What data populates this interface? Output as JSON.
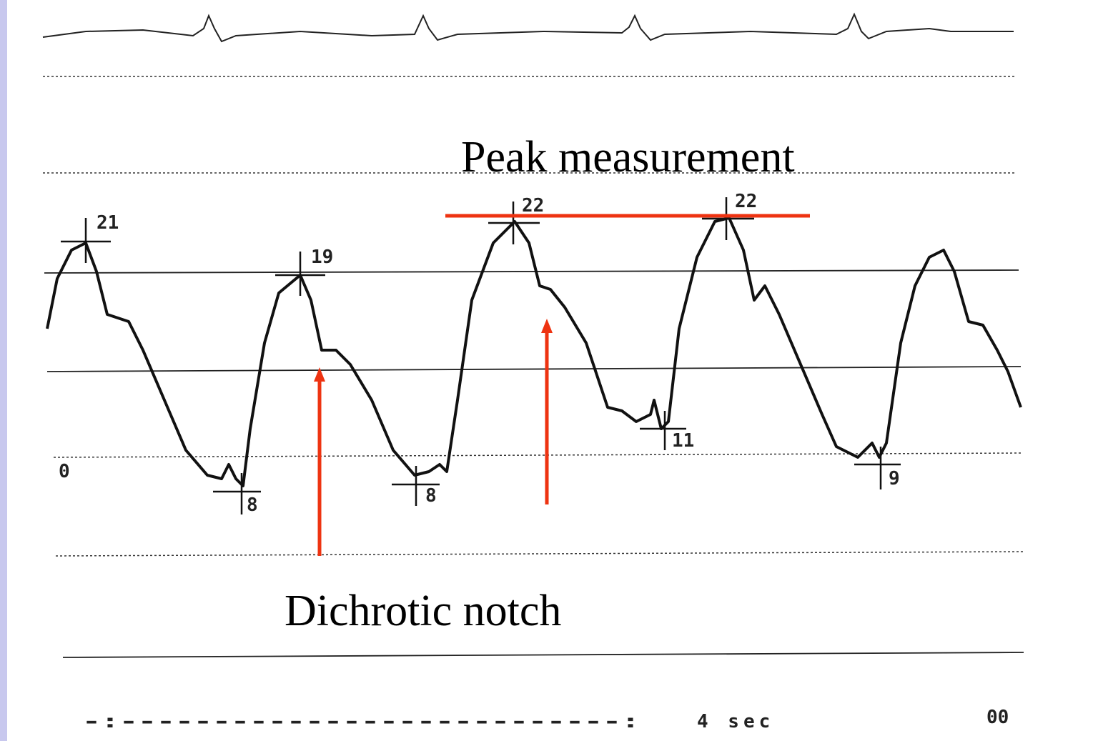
{
  "annotations": {
    "peak": "Peak measurement",
    "notch": "Dichrotic notch"
  },
  "readings": {
    "peaks": [
      "21",
      "19",
      "22",
      "22"
    ],
    "troughs": [
      "8",
      "8",
      "11",
      "9"
    ],
    "zero": "0"
  },
  "footer": {
    "dashes": "-:---------------------------:",
    "duration": "4 sec",
    "code": "00"
  }
}
